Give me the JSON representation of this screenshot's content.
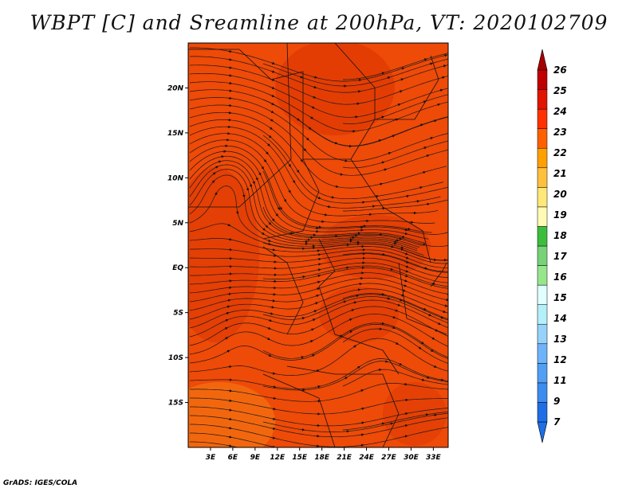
{
  "title": "WBPT [C] and Sreamline at 200hPa, VT: 2020102709",
  "footer": "GrADS: IGES/COLA",
  "map": {
    "lon_labels": [
      "3E",
      "6E",
      "9E",
      "12E",
      "15E",
      "18E",
      "21E",
      "24E",
      "27E",
      "30E",
      "33E"
    ],
    "lat_labels": [
      "20N",
      "15N",
      "10N",
      "5N",
      "EQ",
      "5S",
      "10S",
      "15S"
    ],
    "lon_values": [
      3,
      6,
      9,
      12,
      15,
      18,
      21,
      24,
      27,
      30,
      33
    ],
    "lat_values": [
      20,
      15,
      10,
      5,
      0,
      -5,
      -10,
      -15
    ],
    "lon_range": [
      0,
      35
    ],
    "lat_range": [
      -20,
      25
    ],
    "variable": "WBPT",
    "units": "C",
    "level": "200hPa",
    "valid_time": "2020102709"
  },
  "colorbar": {
    "labels": [
      "7",
      "9",
      "11",
      "12",
      "13",
      "14",
      "15",
      "16",
      "17",
      "18",
      "19",
      "20",
      "21",
      "22",
      "23",
      "24",
      "25",
      "26"
    ],
    "colors": [
      "#1e6ee6",
      "#3c8cf0",
      "#509ff5",
      "#6eb4fa",
      "#96d2fa",
      "#b4f0fa",
      "#e1ffff",
      "#96e68c",
      "#78d278",
      "#3cbe3c",
      "#fffab4",
      "#ffe878",
      "#ffc03c",
      "#ffa000",
      "#ff6000",
      "#ff3200",
      "#e11400",
      "#c00000"
    ],
    "top_color": "#a50000",
    "bottom_color": "#1e6ee6"
  },
  "colors": {
    "field_base": "#ee4a08",
    "field_warm": "#e03a04",
    "field_cool": "#f26a10",
    "streamline": "#1a1a1a"
  }
}
